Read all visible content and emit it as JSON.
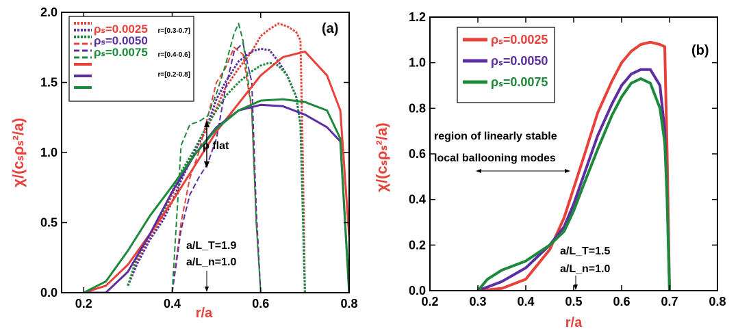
{
  "colors": {
    "red": "#e8413a",
    "purple": "#5b2fa1",
    "green": "#1c8a3a",
    "axis": "#000000"
  },
  "chart_data": [
    {
      "panel_label": "(a)",
      "type": "line",
      "xlabel": "r/a",
      "ylabel": "χ/(cₛρₛ²/a)",
      "xlim": [
        0.15,
        0.8
      ],
      "ylim": [
        0,
        2.0
      ],
      "xticks": [
        "0.2",
        "0.4",
        "0.6",
        "0.8"
      ],
      "yticks": [
        "0.0",
        "0.5",
        "1.0",
        "1.5",
        "2.0"
      ],
      "legend": {
        "position": "top-left",
        "entries": [
          "ρₛ=0.0025",
          "ρₛ=0.0050",
          "ρₛ=0.0075"
        ],
        "ranges": [
          "r=[0.3-0.7]",
          "r=[0.4-0.6]",
          "r=[0.2-0.8]"
        ]
      },
      "annotations": {
        "flat": "ρ flat",
        "lt": "a/L_T=1.9",
        "ln": "a/L_n=1.0"
      },
      "series": [
        {
          "color": "red",
          "style": "dotted",
          "width": 3,
          "x": [
            0.3,
            0.32,
            0.35,
            0.38,
            0.4,
            0.42,
            0.45,
            0.48,
            0.5,
            0.52,
            0.55,
            0.58,
            0.6,
            0.62,
            0.64,
            0.66,
            0.68,
            0.69,
            0.695,
            0.7
          ],
          "y": [
            0.05,
            0.22,
            0.4,
            0.55,
            0.7,
            0.83,
            1.0,
            1.18,
            1.32,
            1.46,
            1.6,
            1.72,
            1.83,
            1.88,
            1.92,
            1.9,
            1.86,
            1.8,
            1.0,
            0.0
          ]
        },
        {
          "color": "purple",
          "style": "dotted",
          "width": 3,
          "x": [
            0.3,
            0.32,
            0.35,
            0.38,
            0.4,
            0.42,
            0.45,
            0.48,
            0.5,
            0.52,
            0.55,
            0.58,
            0.6,
            0.62,
            0.64,
            0.66,
            0.68,
            0.69,
            0.695,
            0.7
          ],
          "y": [
            0.05,
            0.2,
            0.38,
            0.52,
            0.65,
            0.8,
            1.0,
            1.2,
            1.38,
            1.5,
            1.65,
            1.72,
            1.74,
            1.73,
            1.65,
            1.55,
            1.4,
            1.2,
            0.6,
            0.0
          ]
        },
        {
          "color": "green",
          "style": "dotted",
          "width": 3,
          "x": [
            0.3,
            0.32,
            0.35,
            0.38,
            0.4,
            0.42,
            0.45,
            0.48,
            0.5,
            0.52,
            0.55,
            0.58,
            0.6,
            0.62,
            0.64,
            0.66,
            0.68,
            0.69,
            0.695,
            0.7
          ],
          "y": [
            0.05,
            0.25,
            0.42,
            0.58,
            0.72,
            0.86,
            1.02,
            1.2,
            1.3,
            1.4,
            1.5,
            1.58,
            1.62,
            1.64,
            1.62,
            1.55,
            1.4,
            1.2,
            0.6,
            0.0
          ]
        },
        {
          "color": "red",
          "style": "dashed",
          "width": 2,
          "x": [
            0.4,
            0.42,
            0.44,
            0.46,
            0.48,
            0.5,
            0.52,
            0.54,
            0.56,
            0.58,
            0.59,
            0.6
          ],
          "y": [
            0.0,
            0.5,
            0.82,
            1.0,
            1.25,
            1.5,
            1.6,
            1.75,
            1.7,
            1.3,
            0.5,
            0.0
          ]
        },
        {
          "color": "purple",
          "style": "dashed",
          "width": 2,
          "x": [
            0.4,
            0.42,
            0.44,
            0.46,
            0.48,
            0.5,
            0.52,
            0.54,
            0.56,
            0.58,
            0.59,
            0.6
          ],
          "y": [
            0.0,
            0.45,
            0.7,
            0.82,
            0.92,
            1.1,
            1.45,
            1.72,
            1.78,
            1.5,
            0.6,
            0.0
          ]
        },
        {
          "color": "green",
          "style": "dashed",
          "width": 2,
          "x": [
            0.4,
            0.42,
            0.44,
            0.46,
            0.48,
            0.5,
            0.52,
            0.54,
            0.55,
            0.56,
            0.58,
            0.59,
            0.6
          ],
          "y": [
            0.0,
            1.05,
            1.2,
            1.22,
            1.26,
            1.42,
            1.62,
            1.85,
            1.92,
            1.8,
            1.3,
            0.5,
            0.0
          ]
        },
        {
          "color": "red",
          "style": "solid",
          "width": 3,
          "x": [
            0.2,
            0.25,
            0.3,
            0.35,
            0.4,
            0.45,
            0.5,
            0.55,
            0.6,
            0.65,
            0.7,
            0.75,
            0.78,
            0.8
          ],
          "y": [
            0.0,
            0.05,
            0.2,
            0.42,
            0.65,
            0.9,
            1.15,
            1.35,
            1.55,
            1.68,
            1.72,
            1.55,
            1.3,
            0.4
          ]
        },
        {
          "color": "purple",
          "style": "solid",
          "width": 3,
          "x": [
            0.2,
            0.25,
            0.3,
            0.35,
            0.4,
            0.45,
            0.5,
            0.55,
            0.6,
            0.65,
            0.7,
            0.75,
            0.78,
            0.8
          ],
          "y": [
            0.0,
            0.0,
            0.15,
            0.42,
            0.72,
            0.98,
            1.18,
            1.3,
            1.34,
            1.33,
            1.27,
            1.18,
            1.08,
            0.0
          ]
        },
        {
          "color": "green",
          "style": "solid",
          "width": 3,
          "x": [
            0.2,
            0.25,
            0.3,
            0.35,
            0.4,
            0.45,
            0.5,
            0.55,
            0.6,
            0.65,
            0.7,
            0.75,
            0.78,
            0.8
          ],
          "y": [
            0.0,
            0.08,
            0.3,
            0.55,
            0.76,
            0.98,
            1.17,
            1.3,
            1.37,
            1.38,
            1.36,
            1.3,
            1.1,
            0.0
          ]
        }
      ]
    },
    {
      "panel_label": "(b)",
      "type": "line",
      "xlabel": "r/a",
      "ylabel": "χ/(cₛρₛ²/a)",
      "xlim": [
        0.2,
        0.8
      ],
      "ylim": [
        0,
        1.2
      ],
      "xticks": [
        "0.2",
        "0.3",
        "0.4",
        "0.5",
        "0.6",
        "0.7",
        "0.8"
      ],
      "yticks": [
        "0.0",
        "0.2",
        "0.4",
        "0.6",
        "0.8",
        "1.0",
        "1.2"
      ],
      "legend": {
        "position": "top-left",
        "entries": [
          "ρₛ=0.0025",
          "ρₛ=0.0050",
          "ρₛ=0.0075"
        ]
      },
      "annotations": {
        "region1": "region of linearly stable",
        "region2": "local ballooning modes",
        "lt": "a/L_T=1.5",
        "ln": "a/L_n=1.0"
      },
      "series": [
        {
          "color": "red",
          "style": "solid",
          "width": 4,
          "x": [
            0.3,
            0.35,
            0.4,
            0.45,
            0.48,
            0.5,
            0.52,
            0.55,
            0.58,
            0.6,
            0.62,
            0.64,
            0.66,
            0.68,
            0.69,
            0.695,
            0.7
          ],
          "y": [
            0.0,
            0.01,
            0.05,
            0.18,
            0.32,
            0.45,
            0.58,
            0.78,
            0.92,
            1.0,
            1.05,
            1.08,
            1.09,
            1.08,
            1.07,
            0.6,
            0.0
          ]
        },
        {
          "color": "purple",
          "style": "solid",
          "width": 4,
          "x": [
            0.3,
            0.35,
            0.4,
            0.45,
            0.48,
            0.5,
            0.52,
            0.55,
            0.58,
            0.6,
            0.62,
            0.64,
            0.66,
            0.68,
            0.69,
            0.695,
            0.7
          ],
          "y": [
            0.0,
            0.04,
            0.1,
            0.2,
            0.28,
            0.38,
            0.5,
            0.68,
            0.82,
            0.9,
            0.95,
            0.97,
            0.97,
            0.9,
            0.7,
            0.4,
            0.0
          ]
        },
        {
          "color": "green",
          "style": "solid",
          "width": 4,
          "x": [
            0.3,
            0.32,
            0.35,
            0.4,
            0.45,
            0.48,
            0.5,
            0.52,
            0.55,
            0.58,
            0.6,
            0.62,
            0.64,
            0.66,
            0.68,
            0.69,
            0.695,
            0.7
          ],
          "y": [
            0.0,
            0.05,
            0.09,
            0.13,
            0.2,
            0.26,
            0.35,
            0.46,
            0.62,
            0.77,
            0.85,
            0.91,
            0.93,
            0.91,
            0.8,
            0.65,
            0.4,
            0.0
          ]
        }
      ]
    }
  ]
}
